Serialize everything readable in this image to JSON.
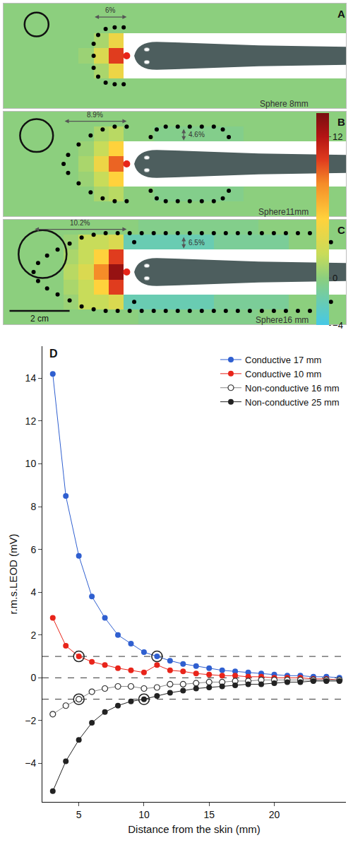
{
  "chart_data": [
    {
      "type": "heatmap",
      "panel": "A",
      "label": "Sphere 8mm",
      "sphere_diameter_mm": 8,
      "xlim": [
        0,
        11.4
      ],
      "ylim": [
        0,
        3.5
      ],
      "tick_labels": false,
      "annotations": [
        "6%"
      ],
      "cell_x": [
        0.25,
        0.75,
        1.25,
        1.75,
        2.25,
        2.75,
        3.25,
        3.75,
        4.25,
        4.75,
        5.25,
        5.75,
        6.25,
        6.75,
        7.25,
        7.75,
        8.25,
        8.75,
        9.25,
        9.75,
        10.25,
        10.75,
        11.25
      ],
      "cell_y": [
        0.25,
        0.75,
        1.25,
        1.75,
        2.25,
        2.75,
        3.25
      ],
      "cells": [
        [
          0,
          0,
          0,
          0,
          0,
          0,
          0,
          0,
          0,
          0,
          0,
          0,
          0,
          0,
          0,
          0,
          0,
          0,
          0,
          0,
          0,
          0,
          0
        ],
        [
          0,
          0,
          0,
          0,
          0,
          0,
          0,
          0,
          0,
          0,
          0,
          0,
          0,
          0,
          0,
          0,
          0,
          0,
          0,
          0,
          0,
          0,
          0
        ],
        [
          0,
          0,
          0,
          0,
          0,
          0,
          1,
          4,
          null,
          null,
          null,
          null,
          null,
          null,
          null,
          null,
          null,
          null,
          null,
          null,
          null,
          null,
          null
        ],
        [
          0,
          0,
          0,
          0,
          0,
          0.5,
          3,
          10,
          null,
          null,
          null,
          null,
          null,
          null,
          null,
          null,
          null,
          null,
          null,
          null,
          null,
          null,
          null
        ],
        [
          0,
          0,
          0,
          0,
          0,
          0,
          1,
          4,
          null,
          null,
          null,
          null,
          null,
          null,
          null,
          null,
          null,
          null,
          null,
          null,
          null,
          null,
          null
        ],
        [
          0,
          0,
          0,
          0,
          0,
          0,
          0,
          0,
          0,
          0,
          0,
          0,
          0,
          0,
          0,
          0,
          0,
          0,
          0,
          0,
          0,
          0,
          0
        ],
        [
          0,
          0,
          0,
          0,
          0,
          0,
          0,
          0,
          0,
          0,
          0,
          0,
          0,
          0,
          0,
          0,
          0,
          0,
          0,
          0,
          0,
          0,
          0
        ]
      ],
      "contour_points": {
        "x": [
          4.0,
          3.7,
          3.4,
          3.15,
          3.0,
          3.0,
          3.0,
          3.15,
          3.4,
          3.7,
          4.0
        ],
        "y": [
          0.8,
          0.8,
          0.85,
          1.05,
          1.35,
          1.75,
          2.15,
          2.45,
          2.65,
          2.7,
          2.7
        ]
      }
    },
    {
      "type": "heatmap",
      "panel": "B",
      "label": "Sphere11mm",
      "sphere_diameter_mm": 11,
      "xlim": [
        0,
        11.4
      ],
      "ylim": [
        0,
        3.5
      ],
      "tick_labels": false,
      "annotations": [
        "8.9%",
        "4.6%"
      ],
      "colorbar": {
        "range": [
          -4,
          14
        ],
        "ticks": [
          -4,
          0,
          12
        ]
      },
      "cell_x": [
        0.25,
        0.75,
        1.25,
        1.75,
        2.25,
        2.75,
        3.25,
        3.75,
        4.25,
        4.75,
        5.25,
        5.75,
        6.25,
        6.75,
        7.25,
        7.75,
        8.25,
        8.75,
        9.25,
        9.75,
        10.25,
        10.75,
        11.25
      ],
      "cell_y": [
        0.25,
        0.75,
        1.25,
        1.75,
        2.25,
        2.75,
        3.25
      ],
      "cells": [
        [
          0,
          0,
          0,
          0,
          0,
          0,
          0,
          0,
          0,
          0,
          0,
          0,
          0,
          0,
          0,
          0,
          0,
          0,
          0,
          0,
          0,
          0,
          0
        ],
        [
          0,
          0,
          0,
          0,
          0,
          0,
          1,
          1.5,
          0,
          0,
          -0.5,
          -0.5,
          -0.5,
          -0.5,
          -0.5,
          -0.5,
          0,
          0,
          0,
          0,
          0,
          0,
          0
        ],
        [
          0,
          0,
          0,
          0,
          0,
          0.5,
          2,
          5,
          null,
          null,
          null,
          null,
          null,
          null,
          null,
          null,
          null,
          null,
          null,
          null,
          null,
          null,
          null
        ],
        [
          0,
          0,
          0,
          0,
          0,
          1,
          4,
          9,
          null,
          null,
          null,
          null,
          null,
          null,
          null,
          null,
          null,
          null,
          null,
          null,
          null,
          null,
          null
        ],
        [
          0,
          0,
          0,
          0,
          0,
          0.5,
          2,
          5,
          null,
          null,
          null,
          null,
          null,
          null,
          null,
          null,
          null,
          null,
          null,
          null,
          null,
          null,
          null
        ],
        [
          0,
          0,
          0,
          0,
          0,
          0,
          1,
          1.5,
          0,
          0,
          -0.5,
          -0.5,
          -0.5,
          -0.5,
          -0.5,
          -0.5,
          0,
          0,
          0,
          0,
          0,
          0,
          0
        ],
        [
          0,
          0,
          0,
          0,
          0,
          0,
          0,
          0,
          0,
          0,
          0,
          0,
          0,
          0,
          0,
          0,
          0,
          0,
          0,
          0,
          0,
          0,
          0
        ]
      ],
      "contour_points": {
        "x": [
          4.1,
          3.7,
          3.3,
          2.9,
          2.5,
          2.15,
          2.0,
          2.15,
          2.5,
          2.9,
          3.3,
          3.7,
          4.1,
          4.9,
          5.1,
          5.4,
          5.8,
          6.2,
          6.6,
          7.0,
          7.3,
          7.5,
          4.9,
          5.1,
          5.4,
          5.8,
          6.2,
          6.6,
          7.0,
          7.3,
          7.5
        ],
        "y": [
          0.5,
          0.5,
          0.6,
          0.8,
          1.1,
          1.45,
          1.75,
          2.05,
          2.4,
          2.7,
          2.9,
          3.0,
          3.0,
          2.65,
          2.9,
          3.0,
          3.0,
          3.0,
          3.0,
          3.0,
          2.9,
          2.65,
          0.85,
          0.6,
          0.5,
          0.5,
          0.5,
          0.5,
          0.5,
          0.6,
          0.85
        ]
      }
    },
    {
      "type": "heatmap",
      "panel": "C",
      "label": "Sphere16 mm",
      "sphere_diameter_mm": 16,
      "xlim": [
        0,
        11.4
      ],
      "ylim": [
        0,
        3.5
      ],
      "tick_labels": false,
      "annotations": [
        "10.2%",
        "6.5%"
      ],
      "scale_bar": {
        "label": "2 cm",
        "length": 2
      },
      "cell_x": [
        0.25,
        0.75,
        1.25,
        1.75,
        2.25,
        2.75,
        3.25,
        3.75,
        4.25,
        4.75,
        5.25,
        5.75,
        6.25,
        6.75,
        7.25,
        7.75,
        8.25,
        8.75,
        9.25,
        9.75,
        10.25,
        10.75,
        11.25
      ],
      "cell_y": [
        0.25,
        0.75,
        1.25,
        1.75,
        2.25,
        2.75,
        3.25
      ],
      "cells": [
        [
          0,
          0,
          0,
          0,
          0,
          0,
          0,
          0,
          0,
          -0.5,
          -0.5,
          -0.5,
          -0.5,
          -0.5,
          -0.5,
          -0.5,
          -0.5,
          0,
          0,
          0,
          0,
          0,
          0
        ],
        [
          0,
          0,
          0,
          0,
          0.5,
          2,
          2,
          3,
          -2,
          -2,
          -2,
          -2,
          -2,
          -2,
          -1,
          -1,
          -1,
          -1,
          -1,
          0,
          0,
          0,
          0
        ],
        [
          0,
          0,
          0,
          0,
          1,
          2,
          5,
          10,
          null,
          null,
          null,
          null,
          null,
          null,
          null,
          null,
          null,
          null,
          null,
          null,
          null,
          null,
          null
        ],
        [
          0,
          0,
          0,
          0,
          1.5,
          3,
          8,
          13,
          null,
          null,
          null,
          null,
          null,
          null,
          null,
          null,
          null,
          null,
          null,
          null,
          null,
          null,
          null
        ],
        [
          0,
          0,
          0,
          0,
          1,
          2,
          5,
          10,
          null,
          null,
          null,
          null,
          null,
          null,
          null,
          null,
          null,
          null,
          null,
          null,
          null,
          null,
          null
        ],
        [
          0,
          0,
          0,
          0,
          0.5,
          2,
          2,
          3,
          -2,
          -2,
          -2,
          -2,
          -2,
          -2,
          -1,
          -1,
          -1,
          -1,
          -1,
          0,
          0,
          0,
          0
        ],
        [
          0,
          0,
          0,
          0,
          0,
          0,
          0,
          0,
          0,
          -0.5,
          -0.5,
          -0.5,
          -0.5,
          -0.5,
          -0.5,
          -0.5,
          -0.5,
          0,
          0,
          0,
          0,
          0,
          0
        ]
      ],
      "contour_points": {
        "x": [
          4.2,
          3.8,
          3.4,
          3.0,
          2.6,
          2.2,
          1.8,
          1.45,
          1.15,
          1.0,
          1.15,
          1.45,
          1.8,
          2.2,
          2.6,
          3.0,
          3.4,
          3.8,
          4.2,
          4.35,
          4.6,
          5.0,
          5.4,
          5.8,
          6.2,
          6.6,
          7.0,
          7.4,
          7.8,
          8.2,
          8.6,
          9.0,
          9.4,
          9.8,
          10.2,
          10.6,
          10.9,
          4.35,
          4.6,
          5.0,
          5.4,
          5.8,
          6.2,
          6.6,
          7.0,
          7.4,
          7.8,
          8.2,
          8.6,
          9.0,
          9.4,
          9.8,
          10.2,
          10.6,
          10.9
        ],
        "y": [
          0.45,
          0.45,
          0.45,
          0.5,
          0.6,
          0.8,
          1.0,
          1.2,
          1.45,
          1.75,
          2.05,
          2.3,
          2.5,
          2.7,
          2.9,
          3.0,
          3.05,
          3.05,
          3.05,
          2.75,
          3.05,
          3.05,
          3.05,
          3.05,
          3.05,
          3.05,
          3.05,
          3.05,
          3.05,
          3.05,
          3.05,
          3.05,
          3.05,
          3.05,
          3.05,
          3.05,
          2.75,
          0.75,
          0.45,
          0.45,
          0.45,
          0.45,
          0.45,
          0.45,
          0.45,
          0.45,
          0.45,
          0.45,
          0.45,
          0.45,
          0.45,
          0.45,
          0.45,
          0.45,
          0.75
        ]
      }
    },
    {
      "type": "line",
      "panel": "D",
      "x_label": "Distance from the skin (mm)",
      "y_label": "r.m.s.LEOD (mV)",
      "x": [
        3,
        4,
        5,
        6,
        7,
        8,
        9,
        10,
        11,
        12,
        13,
        14,
        15,
        16,
        17,
        18,
        19,
        20,
        21,
        22,
        23,
        24,
        25
      ],
      "xlim": [
        2.2,
        25.5
      ],
      "xticks": [
        5,
        10,
        15,
        20
      ],
      "ylim": [
        -5.8,
        15.5
      ],
      "yticks": [
        -4,
        -2,
        0,
        2,
        4,
        6,
        8,
        10,
        12,
        14
      ],
      "legend": "top right",
      "reference_lines": {
        "values": [
          1,
          0,
          -1
        ],
        "line_style": "dashed"
      },
      "series": [
        {
          "name": "Conductive 17 mm",
          "color": "#2f5fd0",
          "marker": "filled",
          "circled_x": 11,
          "values": [
            14.2,
            8.5,
            5.7,
            3.8,
            2.8,
            2.0,
            1.6,
            1.2,
            1.0,
            0.8,
            0.65,
            0.55,
            0.45,
            0.35,
            0.3,
            0.25,
            0.2,
            0.15,
            0.1,
            0.1,
            0.05,
            0.05,
            0.0
          ]
        },
        {
          "name": "Conductive 10 mm",
          "color": "#e8241a",
          "marker": "filled",
          "circled_x": 5,
          "values": [
            2.8,
            1.5,
            1.0,
            0.75,
            0.6,
            0.45,
            0.35,
            0.25,
            0.6,
            0.35,
            0.3,
            0.2,
            0.15,
            0.1,
            0.1,
            0.05,
            0.05,
            0.0,
            0.0,
            0.0,
            -0.05,
            -0.05,
            -0.1
          ]
        },
        {
          "name": "Non-conductive 16 mm",
          "color": "#333333",
          "marker": "open",
          "circled_x": 5,
          "values": [
            -1.7,
            -1.3,
            -1.0,
            -0.65,
            -0.5,
            -0.4,
            -0.4,
            -0.5,
            -0.45,
            -0.3,
            -0.3,
            -0.25,
            -0.2,
            -0.2,
            -0.15,
            -0.15,
            -0.1,
            -0.1,
            -0.1,
            -0.1,
            -0.1,
            -0.1,
            -0.1
          ]
        },
        {
          "name": "Non-conductive 25 mm",
          "color": "#222222",
          "marker": "filled",
          "circled_x": 10,
          "values": [
            -5.3,
            -3.9,
            -2.9,
            -2.1,
            -1.6,
            -1.3,
            -1.1,
            -1.0,
            -0.85,
            -0.7,
            -0.6,
            -0.5,
            -0.45,
            -0.4,
            -0.35,
            -0.3,
            -0.3,
            -0.25,
            -0.2,
            -0.2,
            -0.15,
            -0.15,
            -0.15
          ]
        }
      ]
    }
  ]
}
